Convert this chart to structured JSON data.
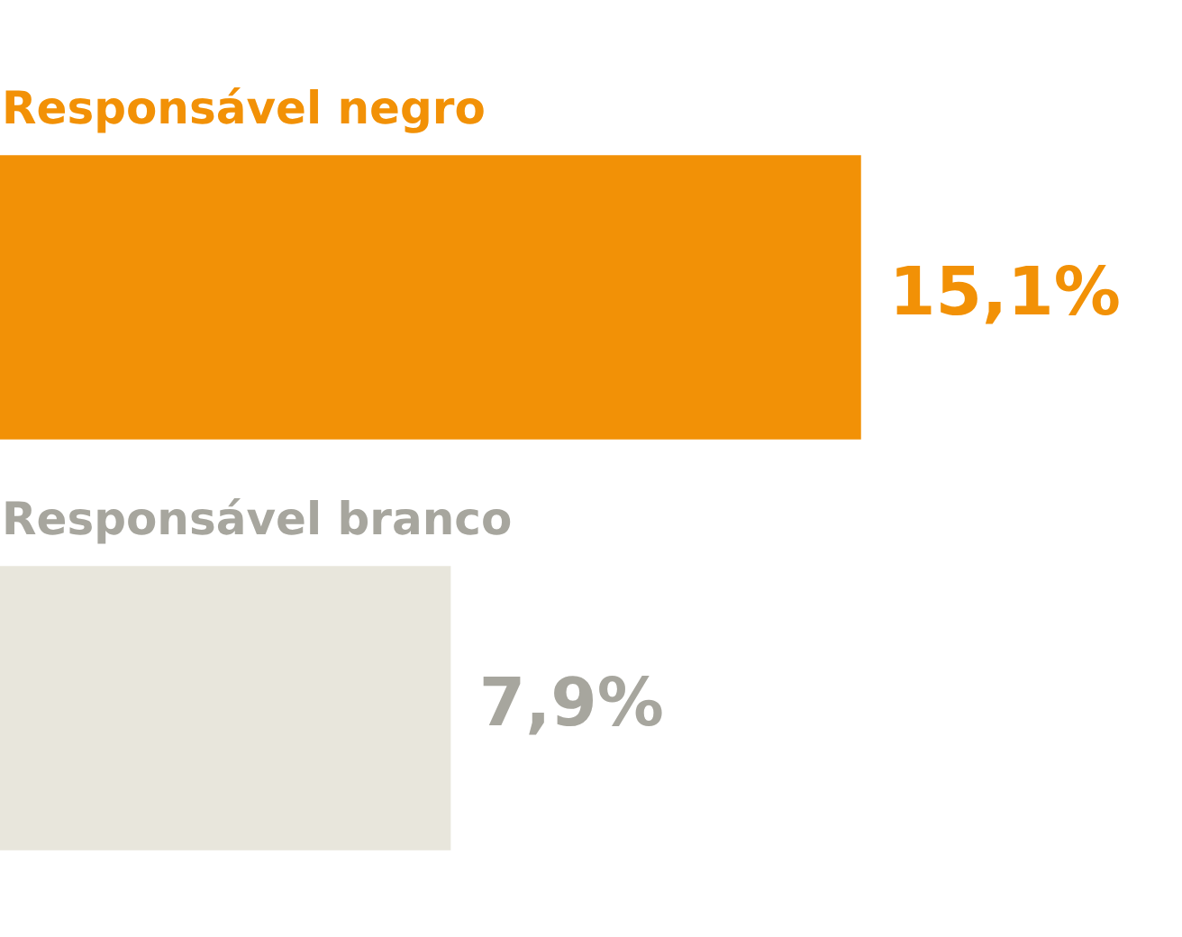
{
  "chart_data": {
    "type": "bar",
    "orientation": "horizontal",
    "categories": [
      "Responsável negro",
      "Responsável branco"
    ],
    "values": [
      15.1,
      7.9
    ],
    "colors": [
      "#f29106",
      "#e8e6dc"
    ],
    "value_labels": [
      "15,1%",
      "7,9%"
    ]
  }
}
